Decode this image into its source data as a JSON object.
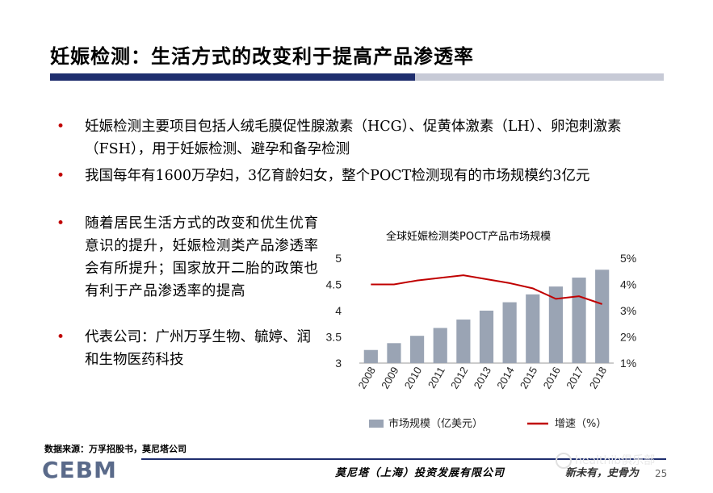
{
  "title": "妊娠检测：生活方式的改变利于提高产品渗透率",
  "bullets": [
    "妊娠检测主要项目包括人绒毛膜促性腺激素（HCG）、促黄体激素（LH）、卵泡刺激素（FSH），用于妊娠检测、避孕和备孕检测",
    "我国每年有1600万孕妇，3亿育龄妇女，整个POCT检测现有的市场规模约3亿元",
    "随着居民生活方式的改变和优生优育意识的提升，妊娠检测类产品渗透率会有所提升；国家放开二胎的政策也有利于产品渗透率的提高",
    "代表公司：广州万孚生物、毓婷、润和生物医药科技"
  ],
  "bullet_marker": "•",
  "chart_data": {
    "type": "bar",
    "title": "全球妊娠检测类POCT产品市场规模",
    "categories": [
      "2008",
      "2009",
      "2010",
      "2011",
      "2012",
      "2013",
      "2014",
      "2015",
      "2016",
      "2017",
      "2018"
    ],
    "series": [
      {
        "name": "市场规模（亿美元）",
        "type": "bar",
        "axis": "left",
        "color": "#9aa4b4",
        "values": [
          3.25,
          3.38,
          3.52,
          3.67,
          3.83,
          4.0,
          4.16,
          4.31,
          4.46,
          4.63,
          4.78
        ]
      },
      {
        "name": "增速（%）",
        "type": "line",
        "axis": "right",
        "color": "#c00000",
        "values": [
          4.0,
          4.0,
          4.15,
          4.25,
          4.35,
          4.2,
          4.05,
          3.85,
          3.45,
          3.55,
          3.25
        ]
      }
    ],
    "ylim_left": [
      3,
      5
    ],
    "yticks_left": [
      "5",
      "4.5",
      "4",
      "3.5",
      "3"
    ],
    "ylim_right": [
      1,
      5
    ],
    "yticks_right": [
      "5%",
      "4%",
      "3%",
      "2%",
      "1%"
    ],
    "legend_position": "bottom"
  },
  "source": "数据来源：万孚招股书，莫尼塔公司",
  "logo_text": "CEBM",
  "footer_company": "莫尼塔（上海）投资发展有限公司",
  "footer_motto": "新未有，史骨为",
  "watermark": "healthib俱乐部",
  "page_number": "25",
  "colors": {
    "title_bar": "#1f2e6e",
    "bullet": "#c00000",
    "bar": "#9aa4b4",
    "line": "#c00000",
    "logo": "#5a6a8a"
  }
}
